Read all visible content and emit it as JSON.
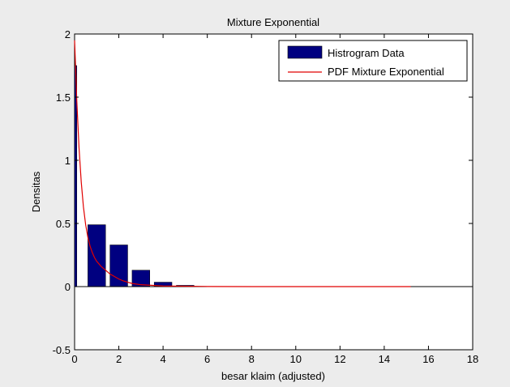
{
  "chart_data": {
    "type": "bar",
    "title": "Mixture Exponential",
    "xlabel": "besar klaim (adjusted)",
    "ylabel": "Densitas",
    "xlim": [
      0,
      18
    ],
    "ylim": [
      -0.5,
      2
    ],
    "xticks": [
      0,
      2,
      4,
      6,
      8,
      10,
      12,
      14,
      16,
      18
    ],
    "yticks": [
      -0.5,
      0,
      0.5,
      1,
      1.5,
      2
    ],
    "xtick_labels": [
      "0",
      "2",
      "4",
      "6",
      "8",
      "10",
      "12",
      "14",
      "16",
      "18"
    ],
    "ytick_labels": [
      "-0.5",
      "0",
      "0.5",
      "1",
      "1.5",
      "2"
    ],
    "grid": false,
    "legend_position": "top-right",
    "series": [
      {
        "name": "Histrogram Data",
        "kind": "bar",
        "color": "#000080",
        "bars": [
          {
            "x": 0.05,
            "value": 1.75,
            "width": 0.1
          },
          {
            "x": 1.0,
            "value": 0.49,
            "width": 0.8
          },
          {
            "x": 2.0,
            "value": 0.33,
            "width": 0.8
          },
          {
            "x": 3.0,
            "value": 0.13,
            "width": 0.8
          },
          {
            "x": 4.0,
            "value": 0.035,
            "width": 0.8
          },
          {
            "x": 5.0,
            "value": 0.01,
            "width": 0.8
          }
        ]
      },
      {
        "name": "PDF Mixture Exponential",
        "kind": "line",
        "color": "#e00000",
        "x": [
          0,
          0.1,
          0.2,
          0.3,
          0.4,
          0.5,
          0.6,
          0.7,
          0.8,
          0.9,
          1.0,
          1.2,
          1.4,
          1.6,
          1.8,
          2.0,
          2.2,
          2.4,
          2.6,
          3.0,
          4.0,
          6.0,
          8.0,
          10.0,
          12.0,
          14.0,
          15.2
        ],
        "y": [
          1.95,
          1.47,
          1.1,
          0.83,
          0.63,
          0.49,
          0.39,
          0.32,
          0.27,
          0.23,
          0.2,
          0.16,
          0.13,
          0.1,
          0.08,
          0.06,
          0.045,
          0.035,
          0.025,
          0.015,
          0.005,
          0.001,
          0,
          0,
          0,
          0,
          0
        ]
      }
    ],
    "reference_line": {
      "y": 0,
      "color": "#000000"
    }
  }
}
